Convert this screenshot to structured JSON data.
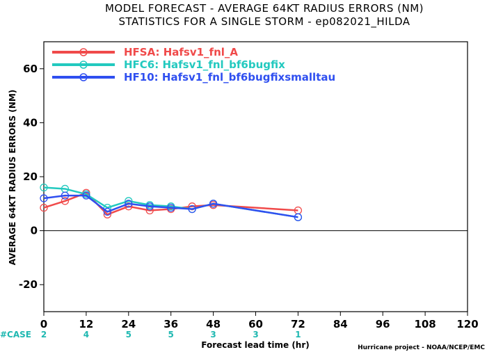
{
  "chart_data": {
    "type": "line",
    "title": "MODEL FORECAST - AVERAGE 64KT RADIUS ERRORS (NM)",
    "subtitle": "STATISTICS FOR A SINGLE STORM - ep082021_HILDA",
    "xlabel": "Forecast lead time (hr)",
    "ylabel": "AVERAGE 64KT RADIUS ERRORS (NM)",
    "xlim": [
      0,
      120
    ],
    "ylim": [
      -30,
      70
    ],
    "xticks": [
      0,
      12,
      24,
      36,
      48,
      60,
      72,
      84,
      96,
      108,
      120
    ],
    "yticks": [
      -20,
      0,
      20,
      40,
      60
    ],
    "legend_position": "top-left",
    "series": [
      {
        "name": "HFSA",
        "label": "Hafsv1_fnl_A",
        "color": "#f04a4a",
        "x": [
          0,
          6,
          12,
          18,
          24,
          30,
          36,
          42,
          48,
          72
        ],
        "y": [
          8.5,
          11,
          14,
          6,
          9,
          7.5,
          8,
          9,
          9.5,
          7.5
        ]
      },
      {
        "name": "HFC6",
        "label": "Hafsv1_fnl_bf6bugfix",
        "color": "#22c9bf",
        "x": [
          0,
          6,
          12,
          18,
          24,
          30,
          36,
          42,
          48,
          72
        ],
        "y": [
          16,
          15.5,
          13.5,
          8.5,
          11,
          9.5,
          9,
          8,
          10,
          5
        ]
      },
      {
        "name": "HF10",
        "label": "Hafsv1_fnl_bf6bugfixsmalltau",
        "color": "#2f4ff0",
        "x": [
          0,
          6,
          12,
          18,
          24,
          30,
          36,
          42,
          48,
          72
        ],
        "y": [
          12,
          13,
          13,
          7,
          10,
          9,
          8.5,
          8,
          10,
          5
        ]
      }
    ],
    "cases": {
      "label": "#CASE",
      "x": [
        0,
        12,
        24,
        36,
        48,
        60,
        72
      ],
      "values": [
        "2",
        "4",
        "5",
        "5",
        "3",
        "3",
        "1"
      ]
    },
    "credit": "Hurricane project - NOAA/NCEP/EMC"
  },
  "colors": {
    "axis": "#000000",
    "zero_line": "#000000",
    "case_text": "#1fb8b1"
  }
}
